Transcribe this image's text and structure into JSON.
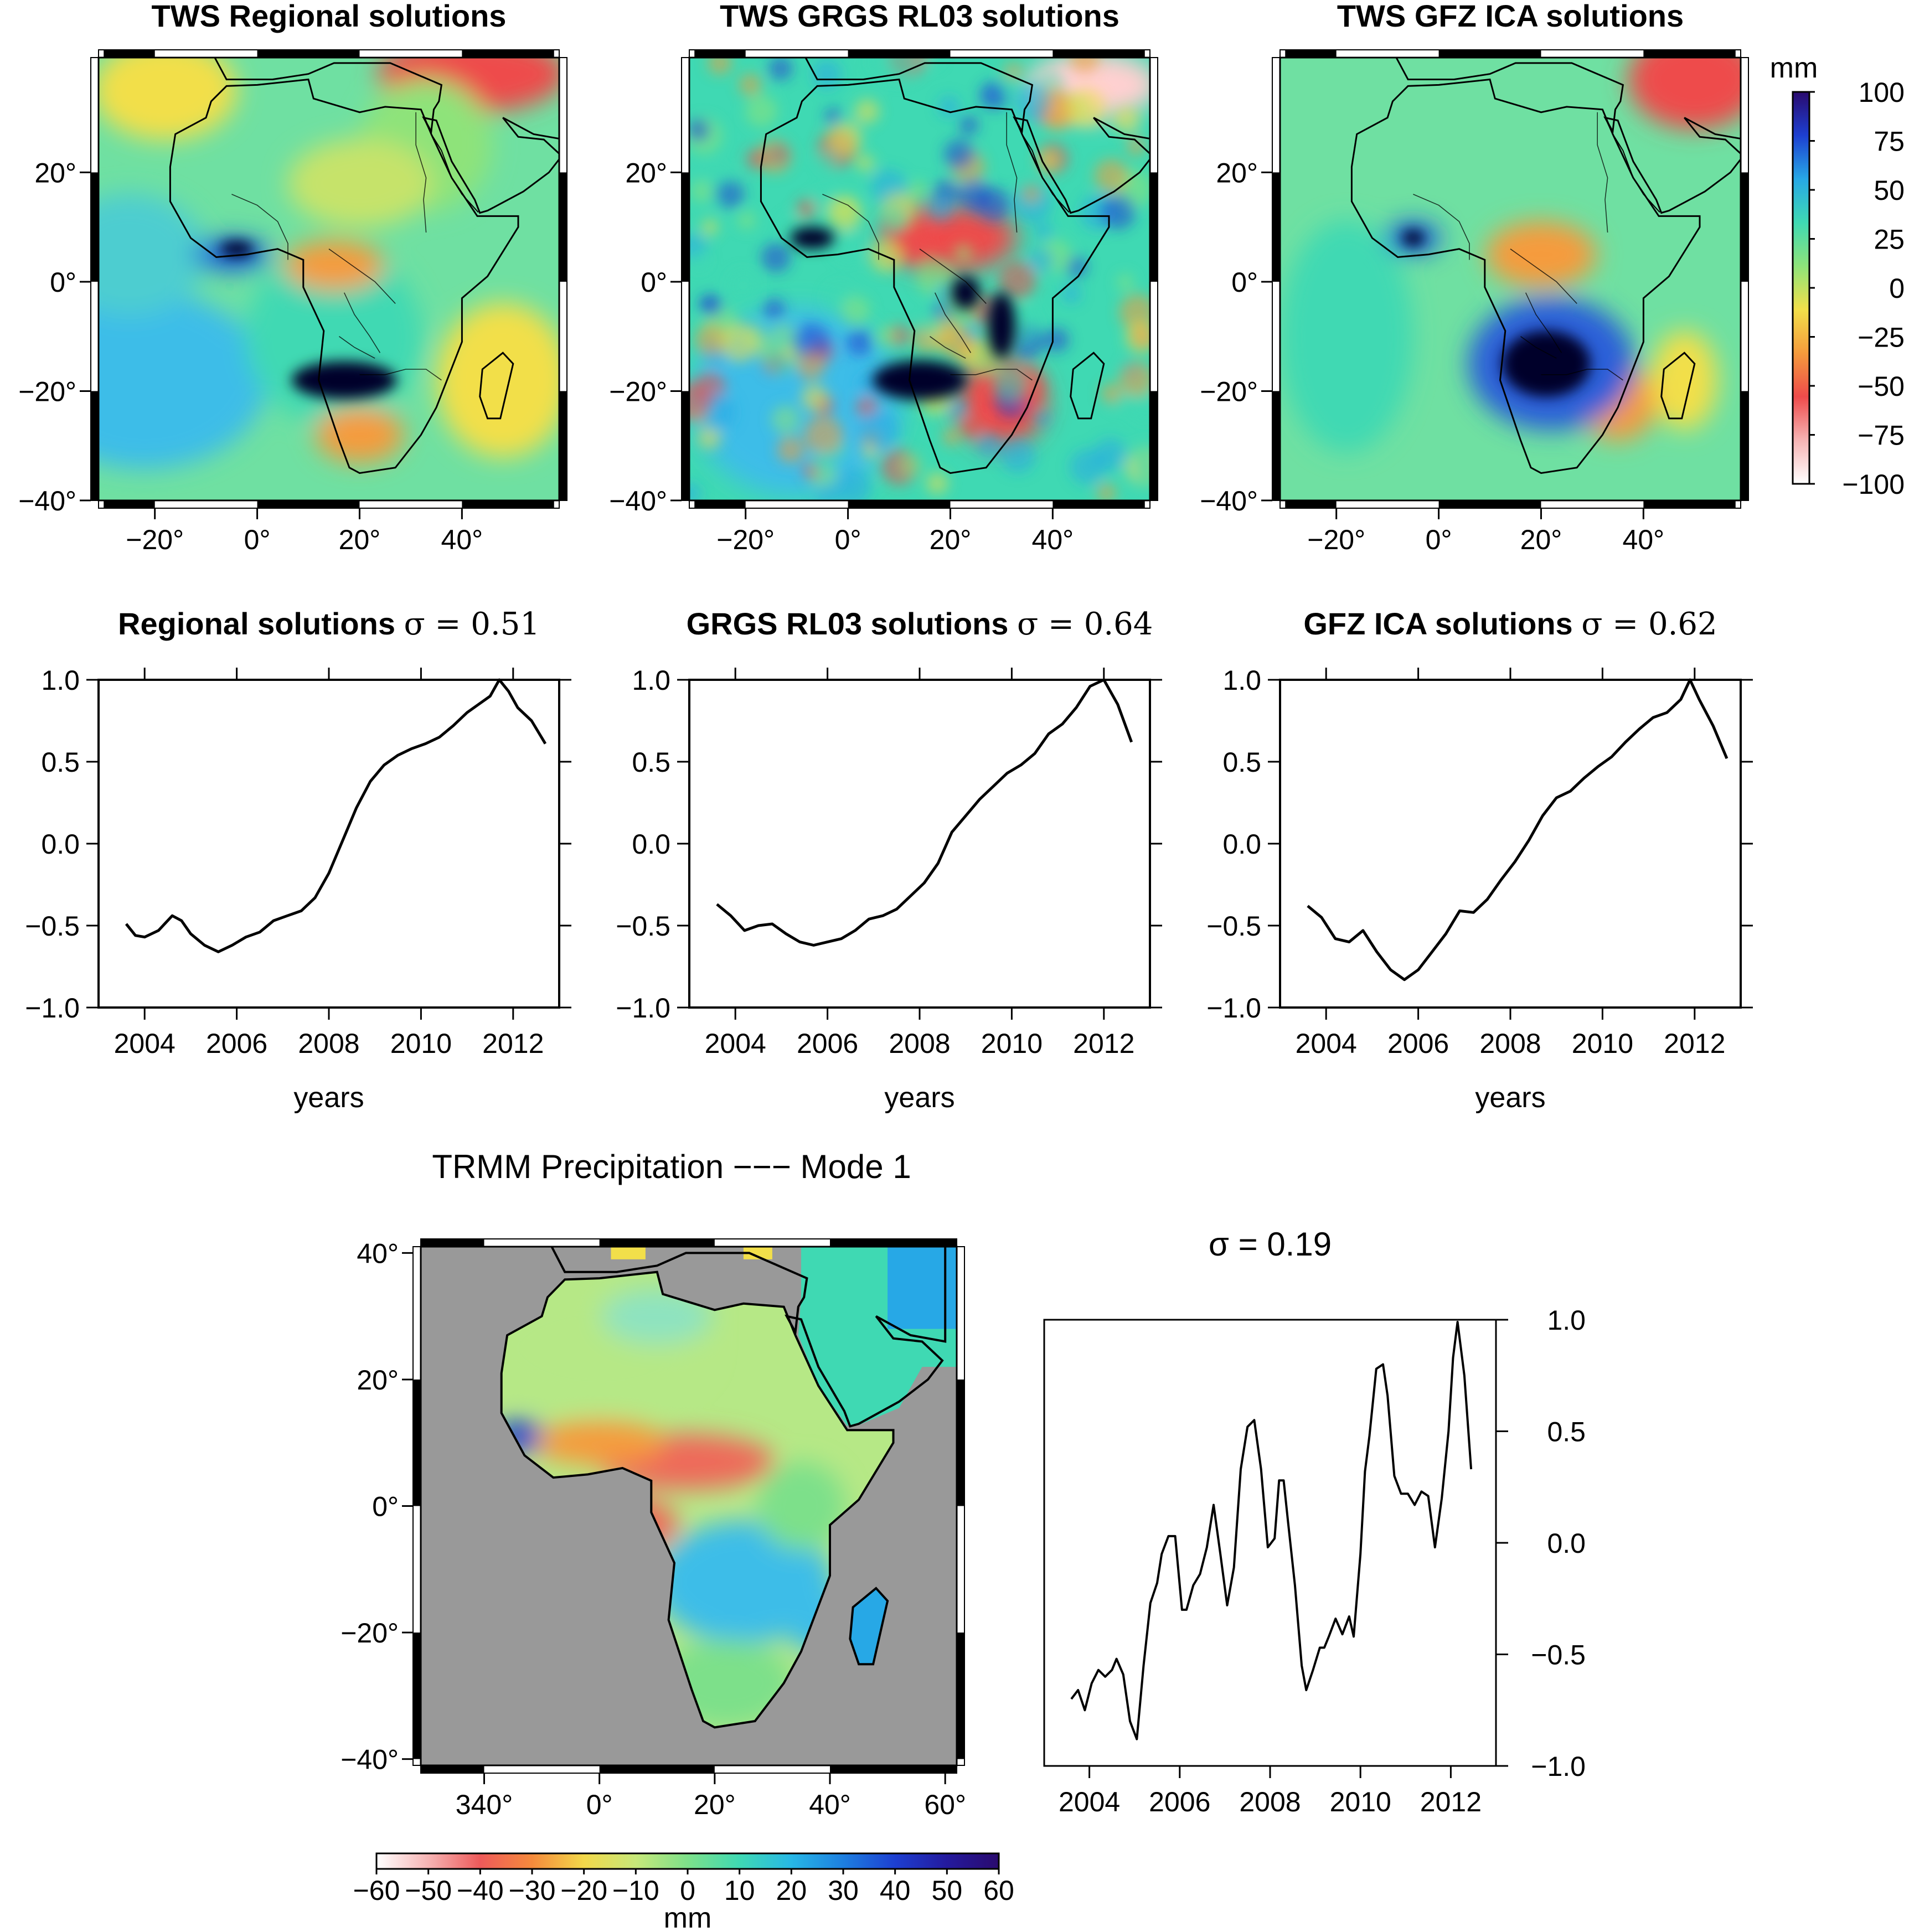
{
  "panels_map": [
    {
      "title": "TWS Regional solutions"
    },
    {
      "title": "TWS GRGS RL03 solutions"
    },
    {
      "title": "TWS GFZ ICA solutions"
    }
  ],
  "map_lat_ticks": [
    "20°",
    "0°",
    "−20°",
    "−40°"
  ],
  "map_lon_ticks": [
    "−20°",
    "0°",
    "20°",
    "40°"
  ],
  "tws_colorbar": {
    "unit": "mm",
    "labels": [
      "100",
      "75",
      "50",
      "25",
      "0",
      "−25",
      "−50",
      "−75",
      "−100"
    ],
    "stops": [
      "#2a0a6e",
      "#1d3fd1",
      "#27a8e6",
      "#3fd9b3",
      "#8ee37a",
      "#f2df4a",
      "#f59b3c",
      "#ee4b4b",
      "#f6b4b4",
      "#ffffff"
    ]
  },
  "chart_data": [
    {
      "type": "line",
      "title": "Regional solutions",
      "sigma_label": "σ = 0.51",
      "xlabel": "years",
      "xlim": [
        2003,
        2013
      ],
      "ylim": [
        -1.0,
        1.0
      ],
      "x_ticks": [
        "2004",
        "2006",
        "2008",
        "2010",
        "2012"
      ],
      "y_ticks": [
        "1.0",
        "0.5",
        "0.0",
        "−0.5",
        "−1.0"
      ],
      "x": [
        2003.6,
        2003.8,
        2004.0,
        2004.3,
        2004.6,
        2004.8,
        2005.0,
        2005.3,
        2005.6,
        2005.9,
        2006.2,
        2006.5,
        2006.8,
        2007.1,
        2007.4,
        2007.7,
        2008.0,
        2008.3,
        2008.6,
        2008.9,
        2009.2,
        2009.5,
        2009.8,
        2010.1,
        2010.4,
        2010.7,
        2011.0,
        2011.3,
        2011.5,
        2011.7,
        2011.9,
        2012.1,
        2012.4,
        2012.7
      ],
      "y": [
        -0.49,
        -0.56,
        -0.57,
        -0.53,
        -0.44,
        -0.47,
        -0.55,
        -0.62,
        -0.66,
        -0.62,
        -0.57,
        -0.54,
        -0.47,
        -0.44,
        -0.41,
        -0.33,
        -0.18,
        0.02,
        0.22,
        0.38,
        0.48,
        0.54,
        0.58,
        0.61,
        0.65,
        0.72,
        0.8,
        0.86,
        0.9,
        1.0,
        0.93,
        0.83,
        0.75,
        0.61
      ]
    },
    {
      "type": "line",
      "title": "GRGS RL03 solutions",
      "sigma_label": "σ = 0.64",
      "xlabel": "years",
      "xlim": [
        2003,
        2013
      ],
      "ylim": [
        -1.0,
        1.0
      ],
      "x_ticks": [
        "2004",
        "2006",
        "2008",
        "2010",
        "2012"
      ],
      "y_ticks": [
        "1.0",
        "0.5",
        "0.0",
        "−0.5",
        "−1.0"
      ],
      "x": [
        2003.6,
        2003.9,
        2004.2,
        2004.5,
        2004.8,
        2005.1,
        2005.4,
        2005.7,
        2006.0,
        2006.3,
        2006.6,
        2006.9,
        2007.2,
        2007.5,
        2007.8,
        2008.1,
        2008.4,
        2008.7,
        2009.0,
        2009.3,
        2009.6,
        2009.9,
        2010.2,
        2010.5,
        2010.8,
        2011.1,
        2011.4,
        2011.7,
        2012.0,
        2012.3,
        2012.6
      ],
      "y": [
        -0.37,
        -0.44,
        -0.53,
        -0.5,
        -0.49,
        -0.55,
        -0.6,
        -0.62,
        -0.6,
        -0.58,
        -0.53,
        -0.46,
        -0.44,
        -0.4,
        -0.32,
        -0.24,
        -0.12,
        0.07,
        0.17,
        0.27,
        0.35,
        0.43,
        0.48,
        0.55,
        0.67,
        0.73,
        0.83,
        0.96,
        1.0,
        0.85,
        0.62
      ]
    },
    {
      "type": "line",
      "title": "GFZ ICA  solutions",
      "sigma_label": "σ = 0.62",
      "xlabel": "years",
      "xlim": [
        2003,
        2013
      ],
      "ylim": [
        -1.0,
        1.0
      ],
      "x_ticks": [
        "2004",
        "2006",
        "2008",
        "2010",
        "2012"
      ],
      "y_ticks": [
        "1.0",
        "0.5",
        "0.0",
        "−0.5",
        "−1.0"
      ],
      "x": [
        2003.6,
        2003.9,
        2004.2,
        2004.5,
        2004.8,
        2005.1,
        2005.4,
        2005.7,
        2006.0,
        2006.3,
        2006.6,
        2006.9,
        2007.2,
        2007.5,
        2007.8,
        2008.1,
        2008.4,
        2008.7,
        2009.0,
        2009.3,
        2009.6,
        2009.9,
        2010.2,
        2010.5,
        2010.8,
        2011.1,
        2011.4,
        2011.7,
        2011.9,
        2012.1,
        2012.4,
        2012.7
      ],
      "y": [
        -0.38,
        -0.45,
        -0.58,
        -0.6,
        -0.53,
        -0.66,
        -0.77,
        -0.83,
        -0.77,
        -0.66,
        -0.55,
        -0.41,
        -0.42,
        -0.34,
        -0.22,
        -0.11,
        0.02,
        0.17,
        0.28,
        0.32,
        0.4,
        0.47,
        0.53,
        0.62,
        0.7,
        0.77,
        0.8,
        0.88,
        1.0,
        0.88,
        0.72,
        0.52
      ]
    },
    {
      "type": "line",
      "title": "σ = 0.19",
      "xlabel": "",
      "xlim": [
        2003,
        2013
      ],
      "ylim": [
        -1.0,
        1.0
      ],
      "x_ticks": [
        "2004",
        "2006",
        "2008",
        "2010",
        "2012"
      ],
      "y_ticks": [
        "1.0",
        "0.5",
        "0.0",
        "−0.5",
        "−1.0"
      ],
      "x": [
        2003.6,
        2003.75,
        2003.9,
        2004.05,
        2004.2,
        2004.35,
        2004.5,
        2004.6,
        2004.75,
        2004.9,
        2005.05,
        2005.2,
        2005.35,
        2005.5,
        2005.6,
        2005.75,
        2005.9,
        2006.05,
        2006.15,
        2006.3,
        2006.45,
        2006.6,
        2006.75,
        2006.9,
        2007.05,
        2007.2,
        2007.35,
        2007.5,
        2007.65,
        2007.8,
        2007.95,
        2008.1,
        2008.2,
        2008.3,
        2008.4,
        2008.55,
        2008.7,
        2008.8,
        2008.95,
        2009.1,
        2009.2,
        2009.3,
        2009.45,
        2009.6,
        2009.75,
        2009.85,
        2010.0,
        2010.1,
        2010.2,
        2010.35,
        2010.5,
        2010.6,
        2010.75,
        2010.9,
        2011.05,
        2011.2,
        2011.35,
        2011.5,
        2011.65,
        2011.8,
        2011.95,
        2012.05,
        2012.15,
        2012.3,
        2012.45
      ],
      "y": [
        -0.7,
        -0.66,
        -0.75,
        -0.63,
        -0.57,
        -0.6,
        -0.57,
        -0.52,
        -0.59,
        -0.8,
        -0.88,
        -0.55,
        -0.27,
        -0.18,
        -0.05,
        0.03,
        0.03,
        -0.3,
        -0.3,
        -0.19,
        -0.14,
        -0.02,
        0.17,
        -0.05,
        -0.28,
        -0.11,
        0.33,
        0.52,
        0.55,
        0.33,
        -0.02,
        0.02,
        0.28,
        0.28,
        0.09,
        -0.19,
        -0.55,
        -0.66,
        -0.57,
        -0.47,
        -0.47,
        -0.42,
        -0.34,
        -0.41,
        -0.33,
        -0.42,
        -0.05,
        0.32,
        0.48,
        0.78,
        0.8,
        0.66,
        0.3,
        0.22,
        0.22,
        0.17,
        0.23,
        0.21,
        -0.02,
        0.2,
        0.5,
        0.83,
        0.99,
        0.75,
        0.33
      ]
    }
  ],
  "trmm": {
    "title": "TRMM Precipitation −−− Mode 1",
    "lat_ticks": [
      "40°",
      "20°",
      "0°",
      "−20°",
      "−40°"
    ],
    "lon_ticks": [
      "340°",
      "0°",
      "20°",
      "40°",
      "60°"
    ],
    "colorbar_labels": [
      "−60",
      "−50",
      "−40",
      "−30",
      "−20",
      "−10",
      "0",
      "10",
      "20",
      "30",
      "40",
      "50",
      "60"
    ],
    "colorbar_unit": "mm",
    "stops": [
      "#ffffff",
      "#f6b4b4",
      "#ee5a5a",
      "#f58a3c",
      "#f2d84a",
      "#c7e87a",
      "#7de08a",
      "#3fd9b3",
      "#27b7e6",
      "#1d7fe0",
      "#1d3fd1",
      "#241a9e",
      "#2a0a6e"
    ]
  }
}
